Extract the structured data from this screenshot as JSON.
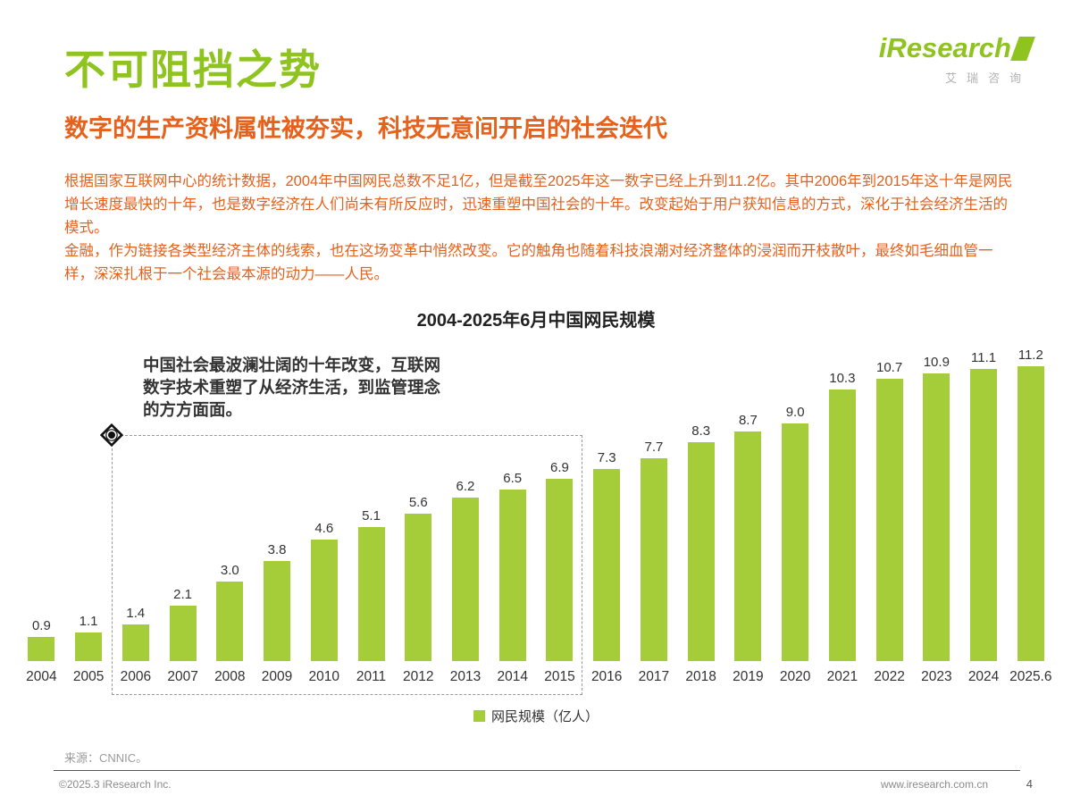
{
  "header": {
    "title": "不可阻挡之势",
    "subtitle": "数字的生产资料属性被夯实，科技无意间开启的社会迭代",
    "paragraph1": "根据国家互联网中心的统计数据，2004年中国网民总数不足1亿，但是截至2025年这一数字已经上升到11.2亿。其中2006年到2015年这十年是网民增长速度最快的十年，也是数字经济在人们尚未有所反应时，迅速重塑中国社会的十年。改变起始于用户获知信息的方式，深化于社会经济生活的模式。",
    "paragraph2": "金融，作为链接各类型经济主体的线索，也在这场变革中悄然改变。它的触角也随着科技浪潮对经济整体的浸润而开枝散叶，最终如毛细血管一样，深深扎根于一个社会最本源的动力——人民。"
  },
  "logo": {
    "name": "iResearch",
    "cn": "艾瑞咨询"
  },
  "chart_data": {
    "type": "bar",
    "title": "2004-2025年6月中国网民规模",
    "categories": [
      "2004",
      "2005",
      "2006",
      "2007",
      "2008",
      "2009",
      "2010",
      "2011",
      "2012",
      "2013",
      "2014",
      "2015",
      "2016",
      "2017",
      "2018",
      "2019",
      "2020",
      "2021",
      "2022",
      "2023",
      "2024",
      "2025.6"
    ],
    "values": [
      0.9,
      1.1,
      1.4,
      2.1,
      3.0,
      3.8,
      4.6,
      5.1,
      5.6,
      6.2,
      6.5,
      6.9,
      7.3,
      7.7,
      8.3,
      8.7,
      9.0,
      10.3,
      10.7,
      10.9,
      11.1,
      11.2
    ],
    "xlabel": "",
    "ylabel": "",
    "ylim": [
      0,
      11.5
    ],
    "grid": false,
    "legend_position": "bottom",
    "legend_label": "网民规模（亿人）",
    "bar_color": "#a5cd39",
    "annotation": "中国社会最波澜壮阔的十年改变，互联网数字技术重塑了从经济生活，到监管理念的方方面面。",
    "highlight_range": [
      "2006",
      "2015"
    ]
  },
  "footer": {
    "source": "来源：CNNIC。",
    "copyright": "©2025.3 iResearch Inc.",
    "website": "www.iresearch.com.cn",
    "page_number": "4"
  },
  "colors": {
    "brand_green": "#8fc31f",
    "accent_orange": "#e5611c",
    "bar_green": "#a5cd39"
  }
}
